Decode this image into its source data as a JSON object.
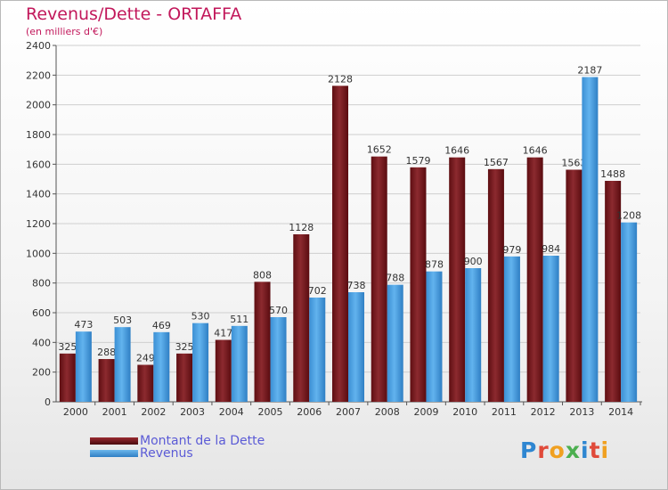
{
  "header": {
    "title": "Revenus/Dette - ORTAFFA",
    "subtitle": "(en milliers d'€)"
  },
  "legend": {
    "debt_label": "Montant de la Dette",
    "revenue_label": "Revenus"
  },
  "logo": {
    "text": "Proxiti",
    "letters": [
      {
        "ch": "P",
        "color": "#2e86d1"
      },
      {
        "ch": "r",
        "color": "#e04a3a"
      },
      {
        "ch": "o",
        "color": "#f0a020"
      },
      {
        "ch": "x",
        "color": "#4caf50"
      },
      {
        "ch": "i",
        "color": "#2e86d1"
      },
      {
        "ch": "t",
        "color": "#e04a3a"
      },
      {
        "ch": "i",
        "color": "#f0a020"
      }
    ]
  },
  "colors": {
    "debt": "#7a1a1e",
    "revenue": "#4a9fdf",
    "title": "#c2185b",
    "legend_text": "#5b5bd6"
  },
  "chart_data": {
    "type": "bar",
    "title": "Revenus/Dette - ORTAFFA",
    "subtitle": "(en milliers d'€)",
    "categories": [
      "2000",
      "2001",
      "2002",
      "2003",
      "2004",
      "2005",
      "2006",
      "2007",
      "2008",
      "2009",
      "2010",
      "2011",
      "2012",
      "2013",
      "2014"
    ],
    "series": [
      {
        "name": "Montant de la Dette",
        "values": [
          325,
          288,
          249,
          325,
          417,
          808,
          1128,
          2128,
          1652,
          1579,
          1646,
          1567,
          1646,
          1563,
          1488
        ]
      },
      {
        "name": "Revenus",
        "values": [
          473,
          503,
          469,
          530,
          511,
          570,
          702,
          738,
          788,
          878,
          900,
          979,
          984,
          2187,
          1208
        ]
      }
    ],
    "ylim": [
      0,
      2400
    ],
    "yticks": [
      0,
      200,
      400,
      600,
      800,
      1000,
      1200,
      1400,
      1600,
      1800,
      2000,
      2200,
      2400
    ],
    "grid": true,
    "legend_position": "bottom-left"
  }
}
